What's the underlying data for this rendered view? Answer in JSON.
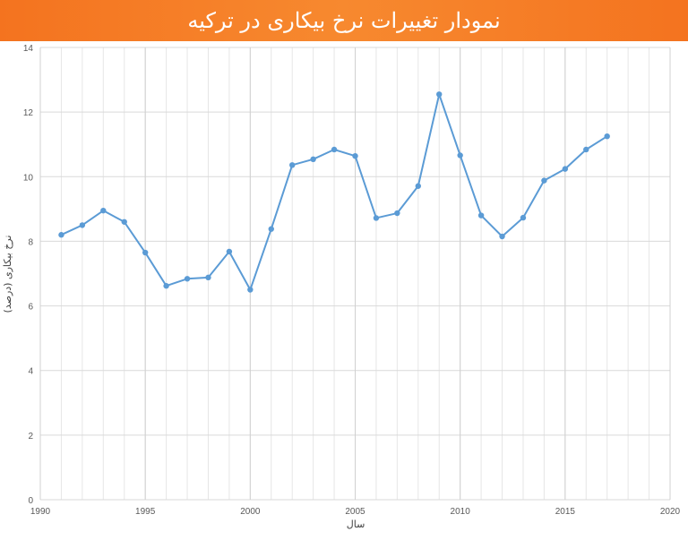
{
  "chart_data": {
    "type": "line",
    "title": "نمودار تغییرات نرخ بیکاری در ترکیه",
    "xlabel": "سال",
    "ylabel": "نرخ بیکاری (درصد)",
    "xlim": [
      1990,
      2020
    ],
    "ylim": [
      0,
      14
    ],
    "x_ticks": [
      1990,
      1995,
      2000,
      2005,
      2010,
      2015,
      2020
    ],
    "y_ticks": [
      0,
      2,
      4,
      6,
      8,
      10,
      12,
      14
    ],
    "grid": true,
    "series": [
      {
        "color": "#5b9bd5",
        "x": [
          1991,
          1992,
          1993,
          1994,
          1995,
          1996,
          1997,
          1998,
          1999,
          2000,
          2001,
          2002,
          2003,
          2004,
          2005,
          2006,
          2007,
          2008,
          2009,
          2010,
          2011,
          2012,
          2013,
          2014,
          2015,
          2016,
          2017
        ],
        "y": [
          8.2,
          8.5,
          8.95,
          8.6,
          7.65,
          6.62,
          6.84,
          6.88,
          7.68,
          6.5,
          8.38,
          10.36,
          10.54,
          10.84,
          10.64,
          8.72,
          8.87,
          9.71,
          12.55,
          10.66,
          8.8,
          8.15,
          8.73,
          9.88,
          10.24,
          10.84,
          11.25
        ]
      }
    ]
  }
}
